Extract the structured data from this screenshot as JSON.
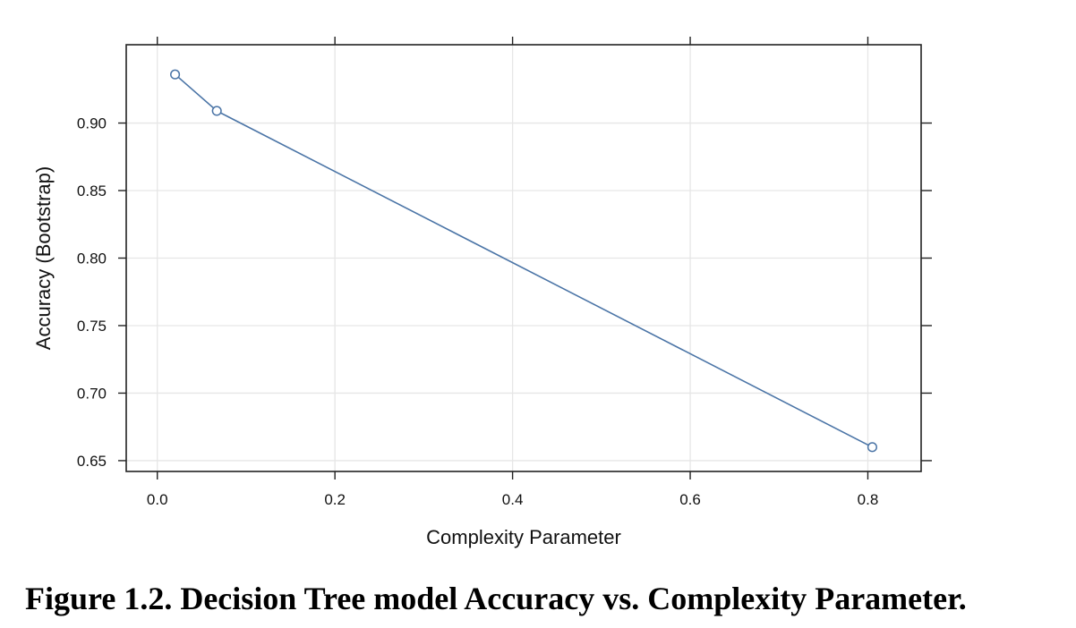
{
  "chart_data": {
    "type": "line",
    "series": [
      {
        "x": [
          0.02,
          0.067,
          0.805
        ],
        "y": [
          0.936,
          0.909,
          0.66
        ],
        "color": "#4a74a6",
        "marker": "open-circle"
      }
    ],
    "xlabel": "Complexity Parameter",
    "ylabel": "Accuracy (Bootstrap)",
    "xlim": [
      -0.035,
      0.86
    ],
    "ylim": [
      0.642,
      0.958
    ],
    "xticks": [
      0.0,
      0.2,
      0.4,
      0.6,
      0.8
    ],
    "xtick_labels": [
      "0.0",
      "0.2",
      "0.4",
      "0.6",
      "0.8"
    ],
    "yticks": [
      0.65,
      0.7,
      0.75,
      0.8,
      0.85,
      0.9
    ],
    "ytick_labels": [
      "0.65",
      "0.70",
      "0.75",
      "0.80",
      "0.85",
      "0.90"
    ],
    "grid": true
  },
  "caption": "Figure 1.2. Decision Tree model Accuracy vs. Complexity Parameter."
}
